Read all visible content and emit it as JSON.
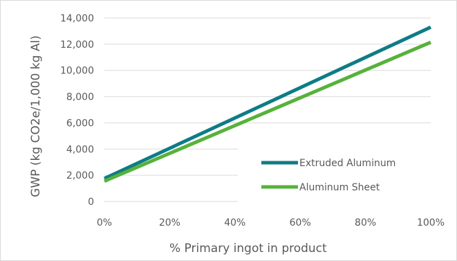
{
  "chart_data": {
    "type": "line",
    "title": "",
    "xlabel": "% Primary ingot in product",
    "ylabel": "GWP (kg CO2e/1,000 kg Al)",
    "x": [
      0,
      100
    ],
    "x_tick_labels": [
      "0%",
      "20%",
      "40%",
      "60%",
      "80%",
      "100%"
    ],
    "x_ticks": [
      0,
      20,
      40,
      60,
      80,
      100
    ],
    "xlim": [
      0,
      100
    ],
    "y_tick_labels": [
      "0",
      "2,000",
      "4,000",
      "6,000",
      "8,000",
      "10,000",
      "12,000",
      "14,000"
    ],
    "y_ticks": [
      0,
      2000,
      4000,
      6000,
      8000,
      10000,
      12000,
      14000
    ],
    "ylim": [
      0,
      14000
    ],
    "grid": true,
    "legend_position": "bottom-right",
    "series": [
      {
        "name": "Extruded Aluminum",
        "color": "#0e7c86",
        "x": [
          0,
          100
        ],
        "values": [
          1750,
          13300
        ]
      },
      {
        "name": "Aluminum Sheet",
        "color": "#56b23a",
        "x": [
          0,
          100
        ],
        "values": [
          1550,
          12150
        ]
      }
    ]
  },
  "colors": {
    "grid": "#d9d9d9",
    "text": "#595959",
    "frame": "#d9d9d9"
  }
}
